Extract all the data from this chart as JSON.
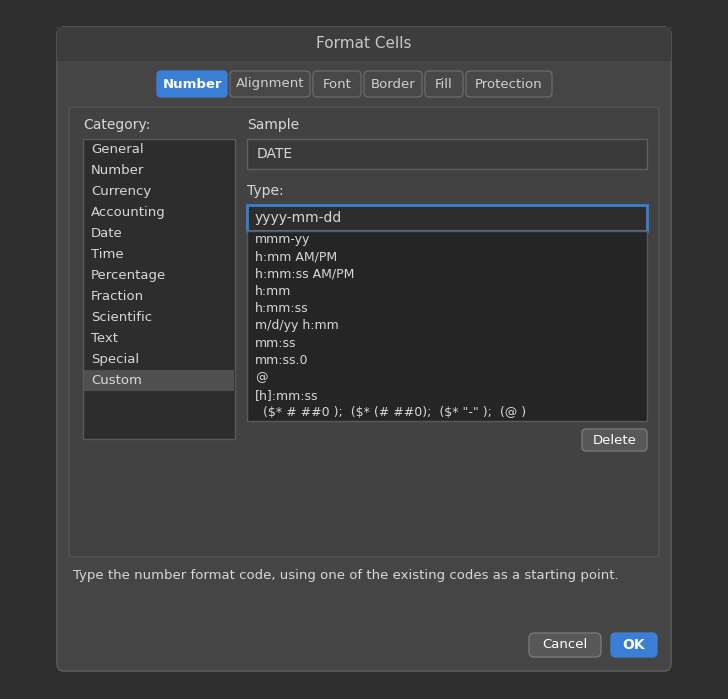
{
  "bg_color": "#2e2e2e",
  "dialog_bg": "#454545",
  "dialog_title_bg": "#3d3d3d",
  "dialog_border": "#5a5a5a",
  "title": "Format Cells",
  "title_color": "#c8c8c8",
  "tabs": [
    "Number",
    "Alignment",
    "Font",
    "Border",
    "Fill",
    "Protection"
  ],
  "active_tab": "Number",
  "active_tab_color": "#3a7fd5",
  "tab_bg": "#484848",
  "tab_border": "#686868",
  "tab_text_color": "#d0d0d0",
  "active_tab_text_color": "#ffffff",
  "category_label": "Category:",
  "categories": [
    "General",
    "Number",
    "Currency",
    "Accounting",
    "Date",
    "Time",
    "Percentage",
    "Fraction",
    "Scientific",
    "Text",
    "Special",
    "Custom"
  ],
  "category_box_bg": "#2d2d2d",
  "category_box_border": "#5a5a5a",
  "category_selected": "Custom",
  "category_selected_bg": "#505050",
  "sample_label": "Sample",
  "sample_value": "DATE",
  "sample_box_bg": "#3a3a3a",
  "sample_box_border": "#606060",
  "type_label": "Type:",
  "type_value": "yyyy-mm-dd",
  "type_box_bg": "#2d2d2d",
  "type_box_border": "#3a7fd5",
  "format_list": [
    "mmm-yy",
    "h:mm AM/PM",
    "h:mm:ss AM/PM",
    "h:mm",
    "h:mm:ss",
    "m/d/yy h:mm",
    "mm:ss",
    "mm:ss.0",
    "@",
    "[h]:mm:ss",
    "  ($* # ##0 );  ($* (# ##0);  ($* \"-\" );  (@ )"
  ],
  "format_list_bg": "#252525",
  "format_list_border": "#5a5a5a",
  "text_color": "#d8d8d8",
  "delete_btn_label": "Delete",
  "delete_btn_bg": "#585858",
  "delete_btn_border": "#787878",
  "hint_text": "Type the number format code, using one of the existing codes as a starting point.",
  "cancel_btn_label": "Cancel",
  "cancel_btn_bg": "#585858",
  "cancel_btn_border": "#787878",
  "ok_btn_label": "OK",
  "ok_btn_bg": "#3a7fd5",
  "ok_btn_border": "#3a7fd5",
  "btn_text_color": "#ffffff",
  "inner_panel_bg": "#424242",
  "inner_panel_border": "#555555"
}
